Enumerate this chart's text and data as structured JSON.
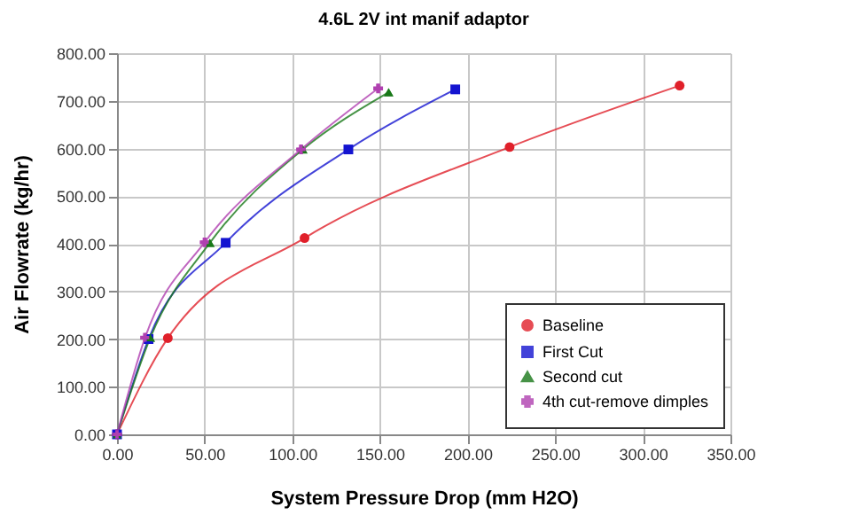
{
  "chart_data": {
    "type": "line",
    "title": "4.6L 2V int manif adaptor",
    "xlabel": "System Pressure Drop (mm H2O)",
    "ylabel": "Air Flowrate (kg/hr)",
    "series": [
      {
        "name": "Baseline",
        "color": "#e0202a",
        "marker": "circle",
        "x": [
          0,
          29,
          107,
          224,
          321
        ],
        "values": [
          0,
          202,
          412,
          603,
          732
        ]
      },
      {
        "name": "First Cut",
        "color": "#1414d0",
        "marker": "square",
        "x": [
          0,
          18,
          62,
          132,
          193
        ],
        "values": [
          0,
          200,
          402,
          598,
          724
        ]
      },
      {
        "name": "Second cut",
        "color": "#187818",
        "marker": "triangle",
        "x": [
          0,
          19,
          53,
          106,
          155
        ],
        "values": [
          0,
          203,
          402,
          598,
          718
        ]
      },
      {
        "name": "4th cut-remove dimples",
        "color": "#b040b0",
        "marker": "cross",
        "x": [
          0,
          16,
          50,
          105,
          149
        ],
        "values": [
          0,
          203,
          403,
          598,
          726
        ]
      }
    ],
    "xlim": [
      0,
      350
    ],
    "xticks": [
      {
        "value": 0,
        "label": "0.00"
      },
      {
        "value": 50,
        "label": "50.00"
      },
      {
        "value": 100,
        "label": "100.00"
      },
      {
        "value": 150,
        "label": "150.00"
      },
      {
        "value": 200,
        "label": "200.00"
      },
      {
        "value": 250,
        "label": "250.00"
      },
      {
        "value": 300,
        "label": "300.00"
      },
      {
        "value": 350,
        "label": "350.00"
      }
    ],
    "ylim": [
      0,
      800
    ],
    "yticks": [
      {
        "value": 0,
        "label": "0.00"
      },
      {
        "value": 100,
        "label": "100.00"
      },
      {
        "value": 200,
        "label": "200.00"
      },
      {
        "value": 300,
        "label": "300.00"
      },
      {
        "value": 400,
        "label": "400.00"
      },
      {
        "value": 500,
        "label": "500.00"
      },
      {
        "value": 600,
        "label": "600.00"
      },
      {
        "value": 700,
        "label": "700.00"
      },
      {
        "value": 800,
        "label": "800.00"
      }
    ],
    "grid": true,
    "legend": "bottom right",
    "line_style": "solid"
  }
}
